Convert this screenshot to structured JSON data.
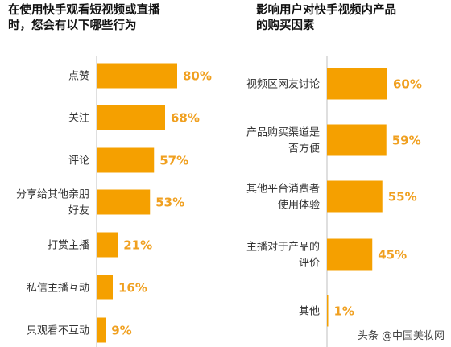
{
  "chart_data": [
    {
      "type": "bar",
      "orientation": "horizontal",
      "title": "在使用快手观看短视频或直播\n时，您会有以下哪些行为",
      "categories": [
        "点赞",
        "关注",
        "评论",
        "分享给其他亲朋\n好友",
        "打赏主播",
        "私信主播互动",
        "只观看不互动"
      ],
      "values": [
        80,
        68,
        57,
        53,
        21,
        16,
        9
      ],
      "value_labels": [
        "80%",
        "68%",
        "57%",
        "53%",
        "21%",
        "16%",
        "9%"
      ],
      "unit": "%",
      "xlim": [
        0,
        100
      ],
      "grid": false,
      "legend": "none"
    },
    {
      "type": "bar",
      "orientation": "horizontal",
      "title": "影响用户对快手视频内产品\n的购买因素",
      "categories": [
        "视频区网友讨论",
        "产品购买渠道是\n否方便",
        "其他平台消费者\n使用体验",
        "主播对于产品的\n评价",
        "其他"
      ],
      "values": [
        60,
        59,
        55,
        45,
        1
      ],
      "value_labels": [
        "60%",
        "59%",
        "55%",
        "45%",
        "1%"
      ],
      "unit": "%",
      "xlim": [
        0,
        100
      ],
      "grid": false,
      "legend": "none"
    }
  ],
  "colors": {
    "bar": "#F5A000",
    "value": "#F0A020",
    "axis": "#BFBFBF"
  },
  "watermark": {
    "text": "头条 @中国美妆网"
  }
}
